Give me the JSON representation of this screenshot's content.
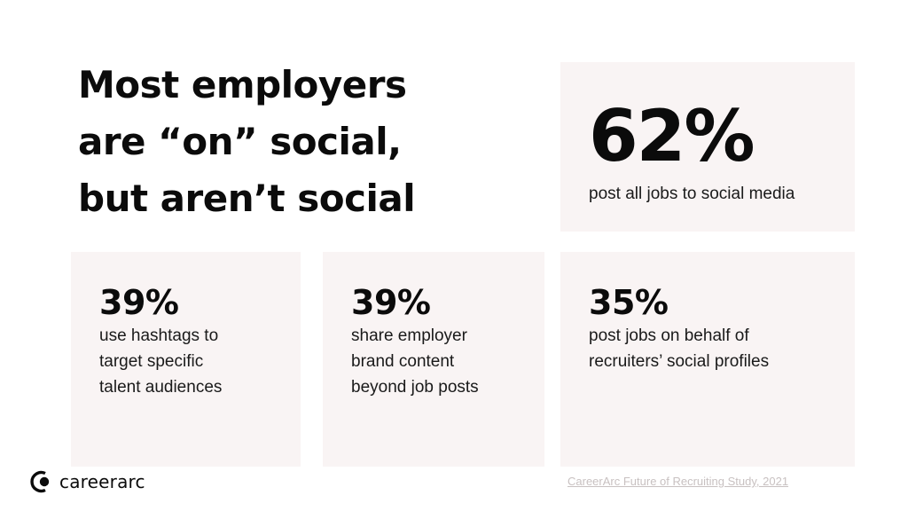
{
  "headline": {
    "line1": "Most employers",
    "line2": "are “on” social,",
    "line3": "but aren’t social"
  },
  "stats": [
    {
      "value": "62%",
      "line1": "post all jobs to social media"
    },
    {
      "value": "39%",
      "line1": "use hashtags to",
      "line2": "target specific",
      "line3": "talent audiences"
    },
    {
      "value": "39%",
      "line1": "share employer",
      "line2": "brand content",
      "line3": "beyond job posts"
    },
    {
      "value": "35%",
      "line1": "post jobs on behalf of",
      "line2": "recruiters’ social profiles"
    }
  ],
  "brand": {
    "name": "careerarc",
    "logo_icon": "careerarc-logo-icon"
  },
  "source": {
    "label": "CareerArc Future of Recruiting Study, 2021"
  },
  "colors": {
    "card_bg": "#f9f4f4",
    "text": "#0b0b0b",
    "source_link": "#c8c1c1"
  }
}
